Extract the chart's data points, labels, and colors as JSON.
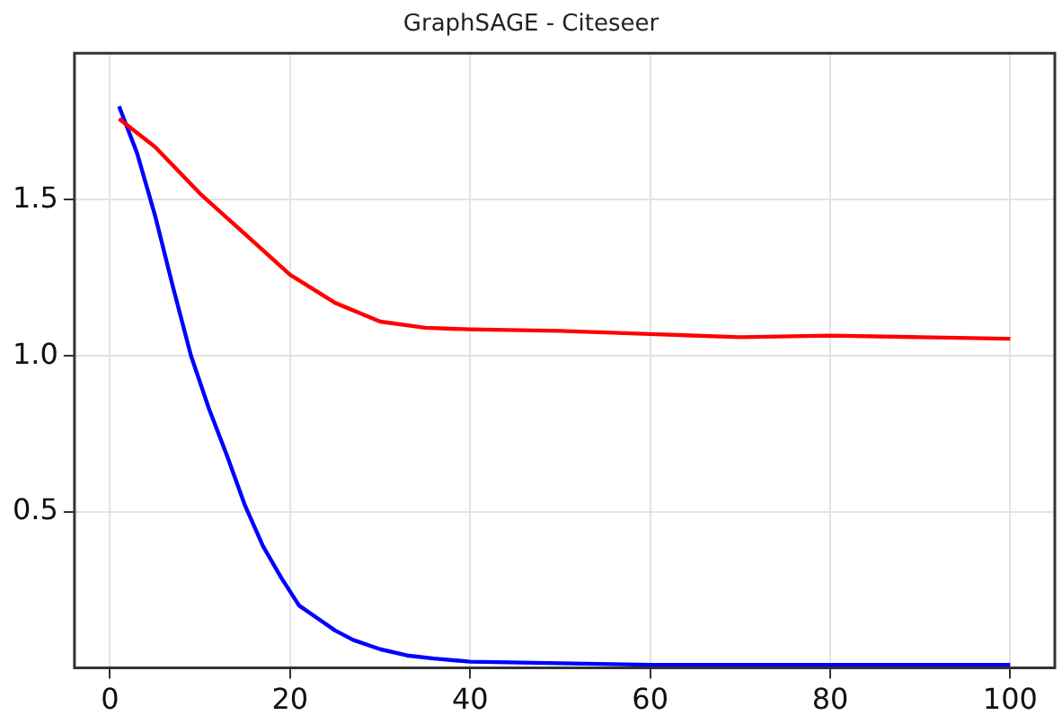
{
  "chart_data": {
    "type": "line",
    "title": "GraphSAGE - Citeseer",
    "xlim": [
      -3.95,
      104.95
    ],
    "xticks": [
      0,
      20,
      40,
      60,
      80,
      100
    ],
    "ylim": [
      0,
      1.97
    ],
    "yticks": [
      {
        "value": 0.5,
        "label": "0.5"
      },
      {
        "value": 1,
        "label": "1.0"
      },
      {
        "value": 1.5,
        "label": "1.5"
      }
    ],
    "grid": true,
    "legend": false,
    "marker": "none",
    "line_style": "solid",
    "series": [
      {
        "color": "#ff0000",
        "x": [
          1,
          5,
          10,
          15,
          20,
          25,
          30,
          35,
          40,
          50,
          60,
          70,
          80,
          90,
          100
        ],
        "values": [
          1.76,
          1.67,
          1.52,
          1.39,
          1.26,
          1.17,
          1.11,
          1.09,
          1.085,
          1.08,
          1.07,
          1.06,
          1.065,
          1.06,
          1.055
        ]
      },
      {
        "color": "#0000ff",
        "x": [
          1,
          3,
          5,
          7,
          9,
          11,
          13,
          15,
          17,
          19,
          21,
          23,
          25,
          27,
          30,
          33,
          36,
          40,
          50,
          60,
          80,
          100
        ],
        "values": [
          1.8,
          1.65,
          1.45,
          1.22,
          1.0,
          0.83,
          0.68,
          0.52,
          0.39,
          0.29,
          0.2,
          0.16,
          0.12,
          0.09,
          0.06,
          0.04,
          0.03,
          0.02,
          0.015,
          0.01,
          0.01,
          0.01
        ]
      }
    ]
  }
}
